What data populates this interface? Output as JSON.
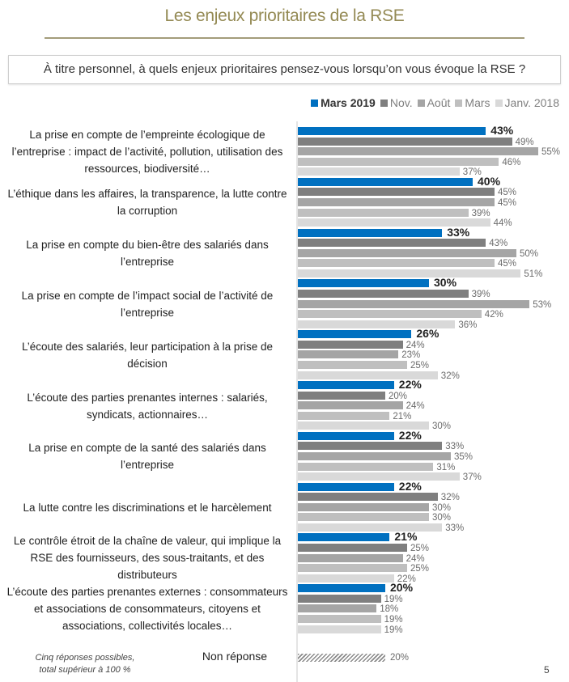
{
  "title": "Les enjeux prioritaires de la RSE",
  "question": "À titre personnel, à quels enjeux prioritaires pensez-vous lorsqu’on vous évoque la RSE ?",
  "footnote_line1": "Cinq réponses possibles,",
  "footnote_line2": "total supérieur à 100 %",
  "page_number": "5",
  "chart_data": {
    "type": "bar",
    "orientation": "horizontal",
    "value_suffix": "%",
    "legend_position": "top-right",
    "grid": false,
    "xlim": [
      0,
      60
    ],
    "series": [
      {
        "name": "Mars 2019",
        "color": "#0070c0",
        "values": [
          43,
          40,
          33,
          30,
          26,
          22,
          22,
          22,
          21,
          20
        ]
      },
      {
        "name": "Nov.",
        "color": "#7f7f7f",
        "values": [
          49,
          45,
          43,
          39,
          24,
          20,
          33,
          32,
          25,
          19
        ]
      },
      {
        "name": "Août",
        "color": "#a5a5a5",
        "values": [
          55,
          45,
          50,
          53,
          23,
          24,
          35,
          30,
          24,
          18
        ]
      },
      {
        "name": "Mars",
        "color": "#bfbfbf",
        "values": [
          46,
          39,
          45,
          42,
          25,
          21,
          31,
          30,
          25,
          19
        ]
      },
      {
        "name": "Janv. 2018",
        "color": "#d9d9d9",
        "values": [
          37,
          44,
          51,
          36,
          32,
          30,
          37,
          33,
          22,
          19
        ]
      }
    ],
    "categories": [
      "La prise en compte de l’empreinte écologique de l’entreprise : impact de l’activité, pollution, utilisation des ressources, biodiversité…",
      "L’éthique dans les affaires, la transparence, la lutte contre la corruption",
      "La prise en compte du bien-être des salariés dans l’entreprise",
      "La prise en compte de l’impact social de l’activité de l’entreprise",
      "L’écoute des salariés, leur participation à la prise de décision",
      "L’écoute des parties prenantes internes : salariés, syndicats, actionnaires…",
      "La prise en compte de la santé des salariés dans l’entreprise",
      "La lutte contre les discriminations et le harcèlement",
      "Le contrôle étroit de la chaîne de valeur, qui implique la RSE des fournisseurs, des sous-traitants, et des distributeurs",
      "L’écoute des parties prenantes externes : consommateurs et associations de consommateurs, citoyens et associations, collectivités locales…"
    ],
    "non_response": {
      "label": "Non réponse",
      "value": 20,
      "pattern": "hatched"
    }
  }
}
